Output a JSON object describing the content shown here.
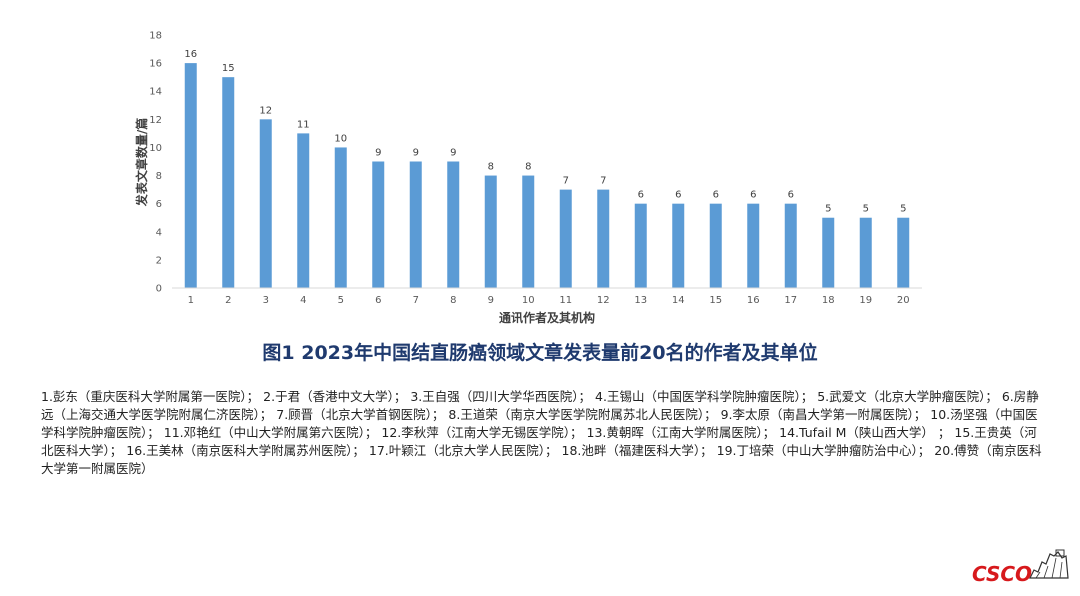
{
  "chart_data": {
    "type": "bar",
    "categories": [
      "1",
      "2",
      "3",
      "4",
      "5",
      "6",
      "7",
      "8",
      "9",
      "10",
      "11",
      "12",
      "13",
      "14",
      "15",
      "16",
      "17",
      "18",
      "19",
      "20"
    ],
    "values": [
      16,
      15,
      12,
      11,
      10,
      9,
      9,
      9,
      8,
      8,
      7,
      7,
      6,
      6,
      6,
      6,
      6,
      5,
      5,
      5
    ],
    "xlabel": "通讯作者及其机构",
    "ylabel": "发表文章数量/篇",
    "ylim": [
      0,
      18
    ],
    "yticks": [
      0,
      2,
      4,
      6,
      8,
      10,
      12,
      14,
      16,
      18
    ],
    "grid": false,
    "bar_color": "#5b9bd5"
  },
  "figure_title": "图1  2023年中国结直肠癌领域文章发表量前20名的作者及其单位",
  "footnote_items": [
    "1.彭东（重庆医科大学附属第一医院）；",
    "2.于君（香港中文大学）；",
    "3.王自强（四川大学华西医院）；",
    "4.王锡山（中国医学科学院肿瘤医院）；",
    "5.武爱文（北京大学肿瘤医院）；",
    "6.房静远（上海交通大学医学院附属仁济医院）；",
    "7.顾晋（北京大学首钢医院）；",
    "8.王道荣（南京大学医学院附属苏北人民医院）；",
    "9.李太原（南昌大学第一附属医院）；",
    "10.汤坚强（中国医学科学院肿瘤医院）；",
    "11.邓艳红（中山大学附属第六医院）；",
    "12.李秋萍（江南大学无锡医学院）；",
    "13.黄朝晖（江南大学附属医院）；",
    "14.Tufail M（陕山西大学）     ；",
    "15.王贵英（河北医科大学）；",
    "16.王美林（南京医科大学附属苏州医院）；",
    "17.叶颖江（北京大学人民医院）；",
    "18.池畔（福建医科大学）；",
    "19.丁培荣（中山大学肿瘤防治中心）；",
    "20.傅赞（南京医科大学第一附属医院）"
  ],
  "logo": {
    "text": "CSCO",
    "color": "#d7191c"
  }
}
